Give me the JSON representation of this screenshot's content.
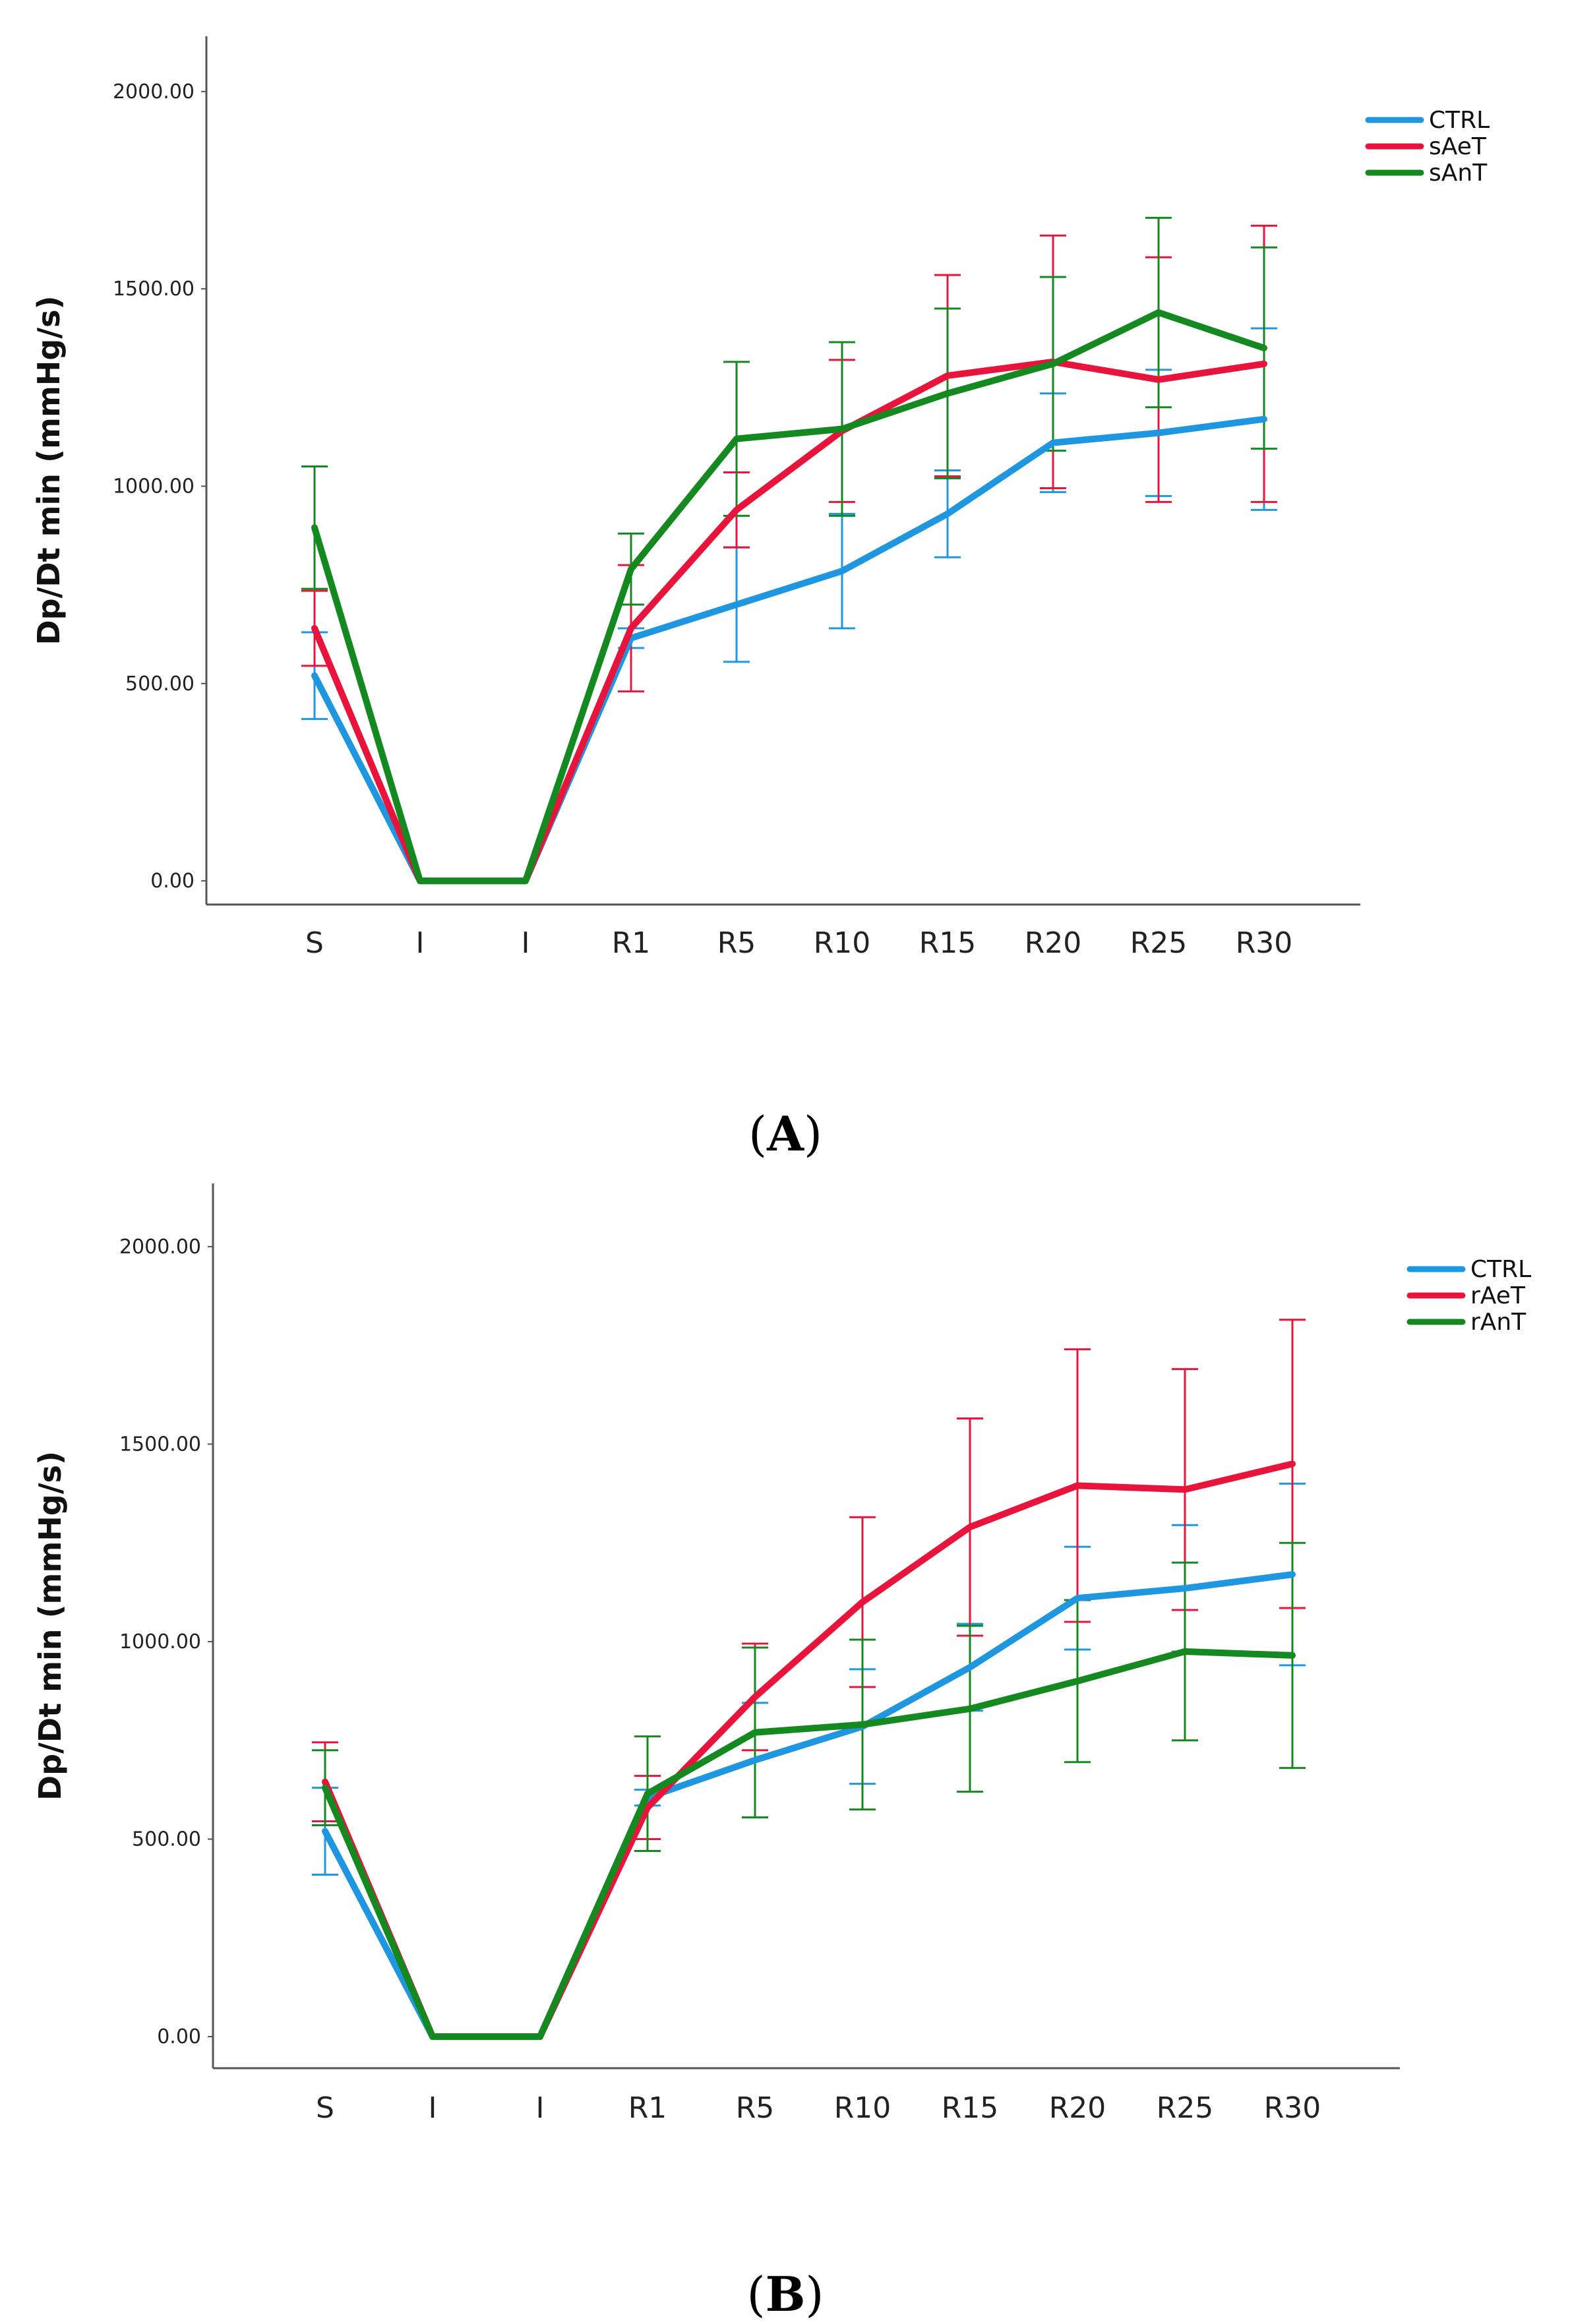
{
  "chart_data": [
    {
      "type": "line",
      "panel_label": "A",
      "ylabel": "Dp/Dt min (mmHg/s)",
      "categories": [
        "S",
        "I",
        "I",
        "R1",
        "R5",
        "R10",
        "R15",
        "R20",
        "R25",
        "R30"
      ],
      "yticks": [
        "0.00",
        "500.00",
        "1000.00",
        "1500.00",
        "2000.00"
      ],
      "ylim": [
        -60,
        2140
      ],
      "legend_position": "top-right",
      "grid": false,
      "series": [
        {
          "name": "CTRL",
          "color": "#1f97e0",
          "values": [
            520,
            0,
            0,
            615,
            700,
            785,
            930,
            1110,
            1135,
            1170
          ],
          "err": [
            110,
            0,
            0,
            25,
            145,
            145,
            110,
            125,
            160,
            230
          ]
        },
        {
          "name": "sAeT",
          "color": "#e8143c",
          "values": [
            640,
            0,
            0,
            640,
            940,
            1140,
            1280,
            1315,
            1270,
            1310
          ],
          "err": [
            95,
            0,
            0,
            160,
            95,
            180,
            255,
            320,
            310,
            350
          ]
        },
        {
          "name": "sAnT",
          "color": "#13891f",
          "values": [
            895,
            0,
            0,
            790,
            1120,
            1145,
            1235,
            1310,
            1440,
            1350
          ],
          "err": [
            155,
            0,
            0,
            90,
            195,
            220,
            215,
            220,
            240,
            255
          ]
        }
      ]
    },
    {
      "type": "line",
      "panel_label": "B",
      "ylabel": "Dp/Dt min (mmHg/s)",
      "categories": [
        "S",
        "I",
        "I",
        "R1",
        "R5",
        "R10",
        "R15",
        "R20",
        "R25",
        "R30"
      ],
      "yticks": [
        "0.00",
        "500.00",
        "1000.00",
        "1500.00",
        "2000.00"
      ],
      "ylim": [
        -80,
        2160
      ],
      "legend_position": "top-right",
      "grid": false,
      "series": [
        {
          "name": "CTRL",
          "color": "#1f97e0",
          "values": [
            520,
            0,
            0,
            605,
            700,
            785,
            935,
            1110,
            1135,
            1170
          ],
          "err": [
            110,
            0,
            0,
            20,
            145,
            145,
            110,
            130,
            160,
            230
          ]
        },
        {
          "name": "rAeT",
          "color": "#e8143c",
          "values": [
            645,
            0,
            0,
            580,
            860,
            1100,
            1290,
            1395,
            1385,
            1450
          ],
          "err": [
            100,
            0,
            0,
            80,
            135,
            215,
            275,
            345,
            305,
            365
          ]
        },
        {
          "name": "rAnT",
          "color": "#13891f",
          "values": [
            630,
            0,
            0,
            615,
            770,
            790,
            830,
            900,
            975,
            965
          ],
          "err": [
            95,
            0,
            0,
            145,
            215,
            215,
            210,
            205,
            225,
            285
          ]
        }
      ]
    }
  ]
}
